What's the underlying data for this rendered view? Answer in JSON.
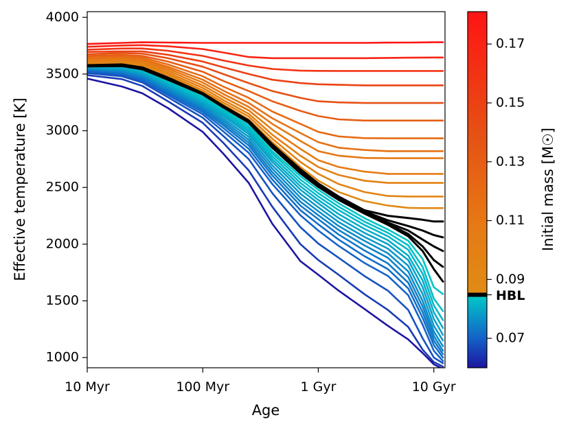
{
  "chart_data": {
    "type": "line",
    "xlabel": "Age",
    "ylabel": "Effective temperature [K]",
    "x_scale": "log",
    "x_unit": "yr",
    "xlim": [
      10000000.0,
      12500000000.0
    ],
    "ylim": [
      910,
      4050
    ],
    "x_ticks": [
      {
        "value": 10000000.0,
        "label": "10 Myr"
      },
      {
        "value": 100000000.0,
        "label": "100 Myr"
      },
      {
        "value": 1000000000.0,
        "label": "1 Gyr"
      },
      {
        "value": 10000000000.0,
        "label": "10 Gyr"
      }
    ],
    "y_ticks": [
      1000,
      1500,
      2000,
      2500,
      3000,
      3500,
      4000
    ],
    "colorbar": {
      "label": "Initial mass [M☉]",
      "range": [
        0.06,
        0.181
      ],
      "ticks": [
        "0.07",
        "0.09",
        "0.11",
        "0.13",
        "0.15",
        "0.17"
      ],
      "hbl_label": "HBL",
      "hbl_mass": 0.0848,
      "stops": [
        {
          "mass": 0.06,
          "color": "#1c14a0"
        },
        {
          "mass": 0.07,
          "color": "#1462c8"
        },
        {
          "mass": 0.0845,
          "color": "#00c8c8"
        },
        {
          "mass": 0.085,
          "color": "#e08c14"
        },
        {
          "mass": 0.11,
          "color": "#e67814"
        },
        {
          "mass": 0.14,
          "color": "#e65014"
        },
        {
          "mass": 0.181,
          "color": "#ff1414"
        }
      ],
      "hbl_color": "#000000"
    },
    "x_ages": [
      10000000.0,
      20000000.0,
      30000000.0,
      50000000.0,
      100000000.0,
      150000000.0,
      250000000.0,
      400000000.0,
      700000000.0,
      1000000000.0,
      1500000000.0,
      2500000000.0,
      4000000000.0,
      6000000000.0,
      8000000000.0,
      10000000000.0,
      12000000000.0
    ],
    "series": [
      {
        "mass": 0.18,
        "values": [
          3765,
          3775,
          3780,
          3778,
          3775,
          3775,
          3775,
          3775,
          3775,
          3775,
          3775,
          3775,
          3777,
          3778,
          3779,
          3780,
          3780
        ]
      },
      {
        "mass": 0.17,
        "values": [
          3740,
          3752,
          3755,
          3745,
          3720,
          3690,
          3650,
          3640,
          3640,
          3640,
          3640,
          3640,
          3642,
          3644,
          3645,
          3646,
          3646
        ]
      },
      {
        "mass": 0.16,
        "values": [
          3715,
          3725,
          3725,
          3705,
          3660,
          3620,
          3575,
          3545,
          3530,
          3528,
          3527,
          3527,
          3527,
          3527,
          3527,
          3527,
          3527
        ]
      },
      {
        "mass": 0.15,
        "values": [
          3695,
          3700,
          3700,
          3670,
          3610,
          3560,
          3500,
          3450,
          3420,
          3410,
          3405,
          3400,
          3400,
          3400,
          3400,
          3400,
          3400
        ]
      },
      {
        "mass": 0.14,
        "values": [
          3675,
          3685,
          3680,
          3640,
          3565,
          3500,
          3420,
          3350,
          3290,
          3260,
          3250,
          3245,
          3245,
          3245,
          3245,
          3245,
          3245
        ]
      },
      {
        "mass": 0.13,
        "values": [
          3660,
          3668,
          3660,
          3610,
          3520,
          3440,
          3350,
          3260,
          3175,
          3130,
          3100,
          3090,
          3090,
          3090,
          3090,
          3090,
          3090
        ]
      },
      {
        "mass": 0.12,
        "values": [
          3645,
          3655,
          3645,
          3585,
          3480,
          3390,
          3290,
          3170,
          3060,
          2990,
          2950,
          2935,
          2933,
          2933,
          2933,
          2933,
          2933
        ]
      },
      {
        "mass": 0.115,
        "values": [
          3630,
          3642,
          3630,
          3565,
          3450,
          3355,
          3245,
          3110,
          2980,
          2900,
          2850,
          2830,
          2820,
          2820,
          2820,
          2820,
          2820
        ]
      },
      {
        "mass": 0.11,
        "values": [
          3620,
          3632,
          3618,
          3548,
          3425,
          3325,
          3210,
          3060,
          2910,
          2820,
          2780,
          2760,
          2758,
          2758,
          2758,
          2758,
          2758
        ]
      },
      {
        "mass": 0.105,
        "values": [
          3610,
          3622,
          3605,
          3530,
          3400,
          3298,
          3180,
          3010,
          2840,
          2740,
          2680,
          2640,
          2620,
          2620,
          2620,
          2620,
          2620
        ]
      },
      {
        "mass": 0.1,
        "values": [
          3600,
          3612,
          3592,
          3512,
          3378,
          3272,
          3150,
          2965,
          2780,
          2680,
          2610,
          2560,
          2540,
          2540,
          2540,
          2540,
          2540
        ]
      },
      {
        "mass": 0.095,
        "values": [
          3592,
          3602,
          3580,
          3495,
          3356,
          3250,
          3125,
          2930,
          2725,
          2620,
          2530,
          2460,
          2425,
          2420,
          2420,
          2420,
          2420
        ]
      },
      {
        "mass": 0.09,
        "values": [
          3585,
          3592,
          3568,
          3478,
          3340,
          3230,
          3100,
          2900,
          2680,
          2560,
          2460,
          2380,
          2340,
          2320,
          2318,
          2318,
          2318
        ]
      },
      {
        "mass": 0.088,
        "values": [
          3578,
          3585,
          3558,
          3468,
          3332,
          3220,
          3090,
          2880,
          2660,
          2535,
          2420,
          2300,
          2250,
          2230,
          2215,
          2200,
          2200
        ]
      },
      {
        "mass": 0.087,
        "values": [
          3575,
          3580,
          3552,
          3462,
          3328,
          3215,
          3085,
          2870,
          2650,
          2525,
          2410,
          2290,
          2210,
          2160,
          2120,
          2080,
          2060
        ]
      },
      {
        "mass": 0.086,
        "values": [
          3572,
          3576,
          3548,
          3457,
          3325,
          3212,
          3080,
          2862,
          2640,
          2518,
          2402,
          2282,
          2190,
          2120,
          2040,
          1980,
          1940
        ]
      },
      {
        "mass": 0.0855,
        "values": [
          3570,
          3573,
          3545,
          3453,
          3322,
          3209,
          3076,
          2855,
          2632,
          2512,
          2396,
          2276,
          2180,
          2090,
          1980,
          1860,
          1800
        ]
      },
      {
        "mass": 0.085,
        "values": [
          3568,
          3570,
          3542,
          3450,
          3320,
          3207,
          3072,
          2850,
          2625,
          2505,
          2390,
          2270,
          2170,
          2070,
          1940,
          1780,
          1670
        ]
      },
      {
        "mass": 0.084,
        "values": [
          3565,
          3565,
          3535,
          3440,
          3300,
          3190,
          3050,
          2820,
          2600,
          2480,
          2360,
          2230,
          2130,
          2030,
          1870,
          1620,
          1560
        ]
      },
      {
        "mass": 0.083,
        "values": [
          3560,
          3560,
          3528,
          3430,
          3285,
          3175,
          3030,
          2800,
          2570,
          2450,
          2330,
          2200,
          2100,
          1990,
          1800,
          1520,
          1410
        ]
      },
      {
        "mass": 0.082,
        "values": [
          3556,
          3555,
          3520,
          3418,
          3270,
          3160,
          3010,
          2775,
          2540,
          2420,
          2300,
          2170,
          2070,
          1950,
          1740,
          1460,
          1330
        ]
      },
      {
        "mass": 0.0805,
        "values": [
          3552,
          3548,
          3510,
          3405,
          3255,
          3145,
          2990,
          2750,
          2510,
          2390,
          2265,
          2135,
          2035,
          1900,
          1680,
          1400,
          1260
        ]
      },
      {
        "mass": 0.079,
        "values": [
          3548,
          3540,
          3500,
          3392,
          3240,
          3130,
          2970,
          2725,
          2480,
          2360,
          2230,
          2100,
          2000,
          1860,
          1620,
          1340,
          1200
        ]
      },
      {
        "mass": 0.0775,
        "values": [
          3544,
          3532,
          3490,
          3380,
          3225,
          3110,
          2945,
          2695,
          2445,
          2325,
          2195,
          2065,
          1960,
          1810,
          1560,
          1280,
          1150
        ]
      },
      {
        "mass": 0.076,
        "values": [
          3540,
          3524,
          3480,
          3368,
          3210,
          3090,
          2920,
          2665,
          2410,
          2290,
          2160,
          2030,
          1920,
          1760,
          1500,
          1230,
          1100
        ]
      },
      {
        "mass": 0.0745,
        "values": [
          3535,
          3515,
          3470,
          3355,
          3195,
          3070,
          2895,
          2635,
          2375,
          2255,
          2125,
          1990,
          1880,
          1710,
          1450,
          1190,
          1060
        ]
      },
      {
        "mass": 0.073,
        "values": [
          3530,
          3506,
          3460,
          3342,
          3180,
          3050,
          2870,
          2605,
          2340,
          2220,
          2085,
          1945,
          1830,
          1660,
          1400,
          1150,
          1030
        ]
      },
      {
        "mass": 0.0715,
        "values": [
          3525,
          3498,
          3450,
          3330,
          3165,
          3025,
          2840,
          2570,
          2300,
          2175,
          2040,
          1895,
          1780,
          1610,
          1350,
          1110,
          1000
        ]
      },
      {
        "mass": 0.07,
        "values": [
          3520,
          3490,
          3440,
          3315,
          3145,
          2995,
          2805,
          2530,
          2255,
          2120,
          1985,
          1835,
          1720,
          1550,
          1290,
          1060,
          970
        ]
      },
      {
        "mass": 0.068,
        "values": [
          3508,
          3480,
          3425,
          3295,
          3115,
          2955,
          2750,
          2450,
          2150,
          2005,
          1880,
          1720,
          1590,
          1420,
          1170,
          1000,
          950
        ]
      },
      {
        "mass": 0.065,
        "values": [
          3490,
          3455,
          3395,
          3260,
          3070,
          2895,
          2650,
          2330,
          2000,
          1860,
          1730,
          1560,
          1420,
          1270,
          1070,
          960,
          920
        ]
      },
      {
        "mass": 0.06,
        "values": [
          3460,
          3390,
          3330,
          3200,
          2990,
          2800,
          2540,
          2180,
          1850,
          1730,
          1590,
          1430,
          1280,
          1160,
          1040,
          940,
          900
        ]
      }
    ]
  }
}
